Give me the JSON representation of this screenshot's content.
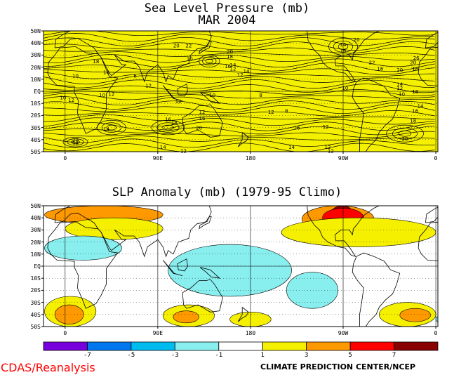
{
  "top_map": {
    "title": "Sea Level Pressure (mb)",
    "subtitle": "MAR 2004",
    "fill_color": "#f5f000",
    "lat_labels": [
      "50N",
      "40N",
      "30N",
      "20N",
      "10N",
      "EQ",
      "10S",
      "20S",
      "30S",
      "40S",
      "50S"
    ],
    "lon_labels": [
      "0",
      "90E",
      "180",
      "90W",
      "0"
    ],
    "contour_labels": [
      {
        "text": "20",
        "lon": 108,
        "lat": 38
      },
      {
        "text": "22",
        "lon": 120,
        "lat": 38
      },
      {
        "text": "14",
        "lon": 270,
        "lat": 39
      },
      {
        "text": "20",
        "lon": 283,
        "lat": 43
      },
      {
        "text": "16",
        "lon": 270,
        "lat": 34
      },
      {
        "text": "22",
        "lon": 390,
        "lat": 44
      },
      {
        "text": "16",
        "lon": 394,
        "lat": 37
      },
      {
        "text": "24",
        "lon": 401,
        "lat": 29
      },
      {
        "text": "22",
        "lon": 401,
        "lat": 24
      },
      {
        "text": "20",
        "lon": 399,
        "lat": 20
      },
      {
        "text": "18",
        "lon": 160,
        "lat": 29
      },
      {
        "text": "20",
        "lon": 160,
        "lat": 33
      },
      {
        "text": "16",
        "lon": 158,
        "lat": 21
      },
      {
        "text": "14",
        "lon": 163,
        "lat": 22
      },
      {
        "text": "12",
        "lon": 163,
        "lat": 19
      },
      {
        "text": "10",
        "lon": 121,
        "lat": 27
      },
      {
        "text": "14",
        "lon": 176,
        "lat": 17
      },
      {
        "text": "12",
        "lon": 170,
        "lat": 14
      },
      {
        "text": "18",
        "lon": 30,
        "lat": 25
      },
      {
        "text": "16",
        "lon": 40,
        "lat": 16
      },
      {
        "text": "10",
        "lon": 10,
        "lat": 13
      },
      {
        "text": "6",
        "lon": 68,
        "lat": 13
      },
      {
        "text": "12",
        "lon": 81,
        "lat": 5
      },
      {
        "text": "22",
        "lon": 298,
        "lat": 24
      },
      {
        "text": "16",
        "lon": 306,
        "lat": 19
      },
      {
        "text": "20",
        "lon": 325,
        "lat": 18
      },
      {
        "text": "16",
        "lon": 340,
        "lat": 19
      },
      {
        "text": "26",
        "lon": 341,
        "lat": 28
      },
      {
        "text": "20",
        "lon": 338,
        "lat": 24
      },
      {
        "text": "14",
        "lon": 325,
        "lat": 6
      },
      {
        "text": "12",
        "lon": 325,
        "lat": 3
      },
      {
        "text": "10",
        "lon": 272,
        "lat": 3
      },
      {
        "text": "18",
        "lon": 340,
        "lat": 0
      },
      {
        "text": "16",
        "lon": 360,
        "lat": 20
      },
      {
        "text": "18",
        "lon": 378,
        "lat": 20
      },
      {
        "text": "14",
        "lon": 398,
        "lat": 6
      },
      {
        "text": "12",
        "lon": 402,
        "lat": 3
      },
      {
        "text": "10",
        "lon": -2,
        "lat": -5
      },
      {
        "text": "12",
        "lon": 6,
        "lat": -7
      },
      {
        "text": "10",
        "lon": 36,
        "lat": -3
      },
      {
        "text": "12",
        "lon": 45,
        "lat": -2
      },
      {
        "text": "10",
        "lon": 143,
        "lat": -3
      },
      {
        "text": "8",
        "lon": 190,
        "lat": -3
      },
      {
        "text": "10",
        "lon": 327,
        "lat": -2
      },
      {
        "text": "14",
        "lon": 345,
        "lat": -12
      },
      {
        "text": "12",
        "lon": 360,
        "lat": -8
      },
      {
        "text": "16",
        "lon": 340,
        "lat": -16
      },
      {
        "text": "18",
        "lon": 338,
        "lat": -24
      },
      {
        "text": "12",
        "lon": 110,
        "lat": -8
      },
      {
        "text": "12",
        "lon": 133,
        "lat": -17
      },
      {
        "text": "16",
        "lon": 133,
        "lat": -22
      },
      {
        "text": "16",
        "lon": 100,
        "lat": -23
      },
      {
        "text": "18",
        "lon": 106,
        "lat": -26
      },
      {
        "text": "20",
        "lon": 130,
        "lat": -30
      },
      {
        "text": "12",
        "lon": 200,
        "lat": -17
      },
      {
        "text": "8",
        "lon": 215,
        "lat": -16
      },
      {
        "text": "16",
        "lon": 225,
        "lat": -30
      },
      {
        "text": "12",
        "lon": 253,
        "lat": -29
      },
      {
        "text": "20",
        "lon": 330,
        "lat": -39
      },
      {
        "text": "12",
        "lon": 392,
        "lat": -36
      },
      {
        "text": "10",
        "lon": 394,
        "lat": -26
      },
      {
        "text": "14",
        "lon": 413,
        "lat": -26
      },
      {
        "text": "16",
        "lon": 406,
        "lat": -32
      },
      {
        "text": "16",
        "lon": 475,
        "lat": -22
      },
      {
        "text": "20",
        "lon": 478,
        "lat": -26
      },
      {
        "text": "14",
        "lon": 40,
        "lat": -31
      },
      {
        "text": "20",
        "lon": 10,
        "lat": -40
      },
      {
        "text": "18",
        "lon": 10,
        "lat": -43
      },
      {
        "text": "14",
        "lon": 95,
        "lat": -46
      },
      {
        "text": "12",
        "lon": 115,
        "lat": -49
      },
      {
        "text": "14",
        "lon": 220,
        "lat": -46
      },
      {
        "text": "12",
        "lon": 255,
        "lat": -46
      },
      {
        "text": "12",
        "lon": 258,
        "lat": -49
      },
      {
        "text": "14",
        "lon": 375,
        "lat": -42
      },
      {
        "text": "12",
        "lon": 388,
        "lat": -44
      }
    ]
  },
  "bottom_map": {
    "title": "SLP Anomaly (mb) (1979-95 Climo)",
    "lat_labels": [
      "50N",
      "40N",
      "30N",
      "20N",
      "10N",
      "EQ",
      "10S",
      "20S",
      "30S",
      "40S",
      "50S"
    ],
    "lon_labels": [
      "0",
      "90E",
      "180",
      "90W",
      "0"
    ],
    "anomaly_regions": [
      {
        "level": "3to5",
        "lon": [
          -20,
          95
        ],
        "lat": [
          35,
          50
        ]
      },
      {
        "level": "1to3",
        "lon": [
          0,
          95
        ],
        "lat": [
          22,
          40
        ]
      },
      {
        "level": "3to5",
        "lon": [
          230,
          300
        ],
        "lat": [
          28,
          50
        ]
      },
      {
        "level": "above7",
        "lon": [
          258,
          280
        ],
        "lat": [
          36,
          50
        ]
      },
      {
        "level": "5to7",
        "lon": [
          250,
          290
        ],
        "lat": [
          32,
          48
        ]
      },
      {
        "level": "1to3",
        "lon": [
          210,
          360
        ],
        "lat": [
          16,
          40
        ]
      },
      {
        "level": "3to5",
        "lon": [
          390,
          460
        ],
        "lat": [
          30,
          50
        ]
      },
      {
        "level": "1to3",
        "lon": [
          370,
          480
        ],
        "lat": [
          18,
          45
        ]
      },
      {
        "level": "neg1to3",
        "lon": [
          -20,
          55
        ],
        "lat": [
          5,
          25
        ]
      },
      {
        "level": "neg1to3",
        "lon": [
          100,
          220
        ],
        "lat": [
          -25,
          18
        ]
      },
      {
        "level": "neg1to3",
        "lon": [
          215,
          265
        ],
        "lat": [
          -35,
          -5
        ]
      },
      {
        "level": "1to3",
        "lon": [
          -20,
          30
        ],
        "lat": [
          -50,
          -25
        ]
      },
      {
        "level": "3to5",
        "lon": [
          -10,
          18
        ],
        "lat": [
          -48,
          -32
        ]
      },
      {
        "level": "1to3",
        "lon": [
          95,
          145
        ],
        "lat": [
          -50,
          -32
        ]
      },
      {
        "level": "3to5",
        "lon": [
          105,
          130
        ],
        "lat": [
          -47,
          -37
        ]
      },
      {
        "level": "1to3",
        "lon": [
          305,
          360
        ],
        "lat": [
          -50,
          -30
        ]
      },
      {
        "level": "3to5",
        "lon": [
          325,
          355
        ],
        "lat": [
          -46,
          -35
        ]
      },
      {
        "level": "1to3",
        "lon": [
          420,
          480
        ],
        "lat": [
          -40,
          -20
        ]
      },
      {
        "level": "3to5",
        "lon": [
          440,
          470
        ],
        "lat": [
          -33,
          -25
        ]
      },
      {
        "level": "neg1to3",
        "lon": [
          360,
          410
        ],
        "lat": [
          -50,
          -38
        ]
      },
      {
        "level": "1to3",
        "lon": [
          160,
          200
        ],
        "lat": [
          -50,
          -38
        ]
      }
    ]
  },
  "colorbar": {
    "colors": [
      "#7700dd",
      "#0077ee",
      "#00bbee",
      "#88eeee",
      "#ffffff",
      "#f5f000",
      "#ff9900",
      "#ff0000",
      "#880000"
    ],
    "tick_labels": [
      "-7",
      "-5",
      "-3",
      "-1",
      "1",
      "3",
      "5",
      "7"
    ]
  },
  "footer": {
    "left": "CDAS/Reanalysis",
    "right": "CLIMATE PREDICTION CENTER/NCEP",
    "left_color": "#ff0000"
  }
}
